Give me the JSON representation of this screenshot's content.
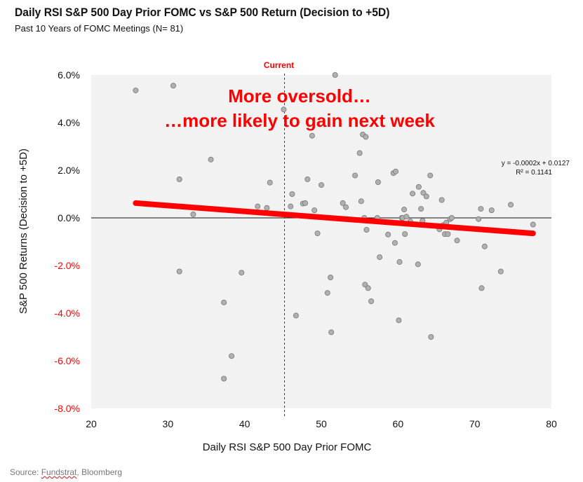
{
  "header": {
    "title": "Daily RSI S&P 500 Day Prior FOMC vs S&P 500 Return (Decision to +5D)",
    "subtitle": "Past 10 Years of FOMC Meetings (N= 81)"
  },
  "footer": {
    "source_prefix": "Source: ",
    "source_link": "Fundstrat",
    "source_suffix": ", Bloomberg"
  },
  "colors": {
    "plot_bg": "#f2f2f2",
    "point_fill": "#b0b0b0",
    "point_stroke": "#777777",
    "trend": "#ff0000",
    "annotation": "#ff0000",
    "negative_tick": "#ff0000",
    "positive_tick": "#111111"
  },
  "chart_data": {
    "type": "scatter",
    "title": "Daily RSI S&P 500 Day Prior FOMC vs S&P 500 Return (Decision to +5D)",
    "subtitle": "Past 10 Years of FOMC Meetings (N= 81)",
    "xlabel": "Daily RSI S&P 500 Day Prior FOMC",
    "ylabel": "S&P 500 Returns (Decision to +5D)",
    "xlim": [
      20,
      80
    ],
    "ylim": [
      -8.0,
      6.0
    ],
    "x_ticks": [
      20,
      30,
      40,
      50,
      60,
      70,
      80
    ],
    "x_tick_labels": [
      "20",
      "30",
      "40",
      "50",
      "60",
      "70",
      "80"
    ],
    "y_ticks": [
      6,
      4,
      2,
      0,
      -2,
      -4,
      -6,
      -8
    ],
    "y_tick_labels": [
      "6.0%",
      "4.0%",
      "2.0%",
      "0.0%",
      "-2.0%",
      "-4.0%",
      "-6.0%",
      "-8.0%"
    ],
    "current_x": 45.2,
    "current_label": "Current",
    "annotation_lines": [
      "More oversold…",
      "…more likely to gain next week"
    ],
    "trendline": {
      "x_range": [
        25.8,
        77.6
      ],
      "y_range": [
        0.62,
        -0.65
      ],
      "equation": "y = -0.0002x + 0.0127",
      "r_squared": "R² = 0.1141"
    },
    "points": [
      [
        25.8,
        5.35
      ],
      [
        30.7,
        5.55
      ],
      [
        31.5,
        1.62
      ],
      [
        31.5,
        -2.25
      ],
      [
        35.6,
        2.45
      ],
      [
        33.3,
        0.15
      ],
      [
        37.3,
        -3.55
      ],
      [
        37.3,
        -6.75
      ],
      [
        38.3,
        -5.8
      ],
      [
        39.6,
        -2.3
      ],
      [
        41.7,
        0.48
      ],
      [
        42.9,
        0.42
      ],
      [
        43.3,
        1.48
      ],
      [
        45.1,
        4.55
      ],
      [
        46.0,
        0.48
      ],
      [
        46.2,
        1.0
      ],
      [
        46.7,
        -4.1
      ],
      [
        47.6,
        0.6
      ],
      [
        47.9,
        0.62
      ],
      [
        48.2,
        1.62
      ],
      [
        48.8,
        3.45
      ],
      [
        49.1,
        0.32
      ],
      [
        49.5,
        -0.65
      ],
      [
        50.0,
        1.38
      ],
      [
        50.8,
        -3.15
      ],
      [
        51.2,
        -2.5
      ],
      [
        51.3,
        -4.8
      ],
      [
        51.8,
        6.0
      ],
      [
        52.8,
        0.62
      ],
      [
        53.2,
        0.45
      ],
      [
        54.4,
        1.78
      ],
      [
        55.0,
        2.72
      ],
      [
        55.2,
        0.7
      ],
      [
        55.4,
        3.5
      ],
      [
        55.6,
        0.0
      ],
      [
        55.7,
        -2.8
      ],
      [
        55.8,
        3.4
      ],
      [
        55.9,
        -0.5
      ],
      [
        56.1,
        -2.95
      ],
      [
        56.5,
        -3.5
      ],
      [
        57.3,
        0.0
      ],
      [
        57.4,
        1.5
      ],
      [
        57.6,
        -1.65
      ],
      [
        58.7,
        -0.7
      ],
      [
        59.4,
        1.88
      ],
      [
        59.6,
        -1.05
      ],
      [
        59.7,
        1.95
      ],
      [
        60.1,
        -4.3
      ],
      [
        60.2,
        -1.85
      ],
      [
        60.5,
        0.0
      ],
      [
        60.6,
        0.0
      ],
      [
        60.8,
        0.35
      ],
      [
        60.9,
        -0.68
      ],
      [
        61.1,
        0.05
      ],
      [
        61.6,
        -0.15
      ],
      [
        61.9,
        1.02
      ],
      [
        62.6,
        -1.95
      ],
      [
        62.7,
        1.3
      ],
      [
        63.0,
        0.38
      ],
      [
        63.2,
        -0.12
      ],
      [
        63.3,
        1.05
      ],
      [
        63.7,
        0.9
      ],
      [
        64.2,
        1.78
      ],
      [
        64.3,
        -5.0
      ],
      [
        65.4,
        -0.48
      ],
      [
        65.7,
        0.75
      ],
      [
        65.9,
        -0.3
      ],
      [
        66.1,
        -0.68
      ],
      [
        66.3,
        -0.2
      ],
      [
        66.5,
        -0.68
      ],
      [
        66.8,
        -0.05
      ],
      [
        67.0,
        0.0
      ],
      [
        67.7,
        -0.95
      ],
      [
        70.5,
        -0.05
      ],
      [
        70.8,
        0.38
      ],
      [
        70.9,
        -2.95
      ],
      [
        71.3,
        -1.2
      ],
      [
        72.2,
        0.32
      ],
      [
        73.4,
        -2.25
      ],
      [
        74.7,
        0.55
      ],
      [
        77.6,
        -0.28
      ]
    ]
  }
}
